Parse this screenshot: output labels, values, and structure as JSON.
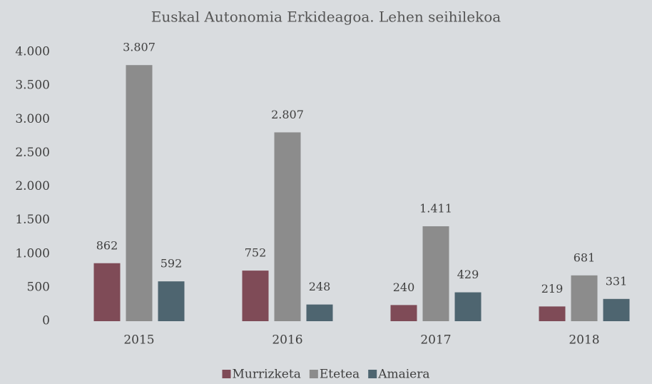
{
  "chart_data": {
    "type": "bar",
    "title": "Euskal Autonomia Erkideagoa. Lehen seihilekoa",
    "categories": [
      "2015",
      "2016",
      "2017",
      "2018"
    ],
    "series": [
      {
        "name": "Murrizketa",
        "color": "#7f4b57",
        "values": [
          862,
          752,
          240,
          219
        ],
        "value_labels": [
          "862",
          "752",
          "240",
          "219"
        ]
      },
      {
        "name": "Etetea",
        "color": "#8c8c8c",
        "values": [
          3807,
          2807,
          1411,
          681
        ],
        "value_labels": [
          "3.807",
          "2.807",
          "1.411",
          "681"
        ]
      },
      {
        "name": "Amaiera",
        "color": "#4e6570",
        "values": [
          592,
          248,
          429,
          331
        ],
        "value_labels": [
          "592",
          "248",
          "429",
          "331"
        ]
      }
    ],
    "ylim": [
      0,
      4000
    ],
    "yticks": [
      0,
      500,
      {
        "value": 1000,
        "label": "1.000"
      },
      {
        "value": 1500,
        "label": "1.500"
      },
      {
        "value": 2000,
        "label": "2.000"
      },
      {
        "value": 2500,
        "label": "2.500"
      },
      {
        "value": 3000,
        "label": "3.000"
      },
      {
        "value": 3500,
        "label": "3.500"
      },
      {
        "value": 4000,
        "label": "4.000"
      }
    ],
    "grid": false,
    "legend": "bottom"
  }
}
